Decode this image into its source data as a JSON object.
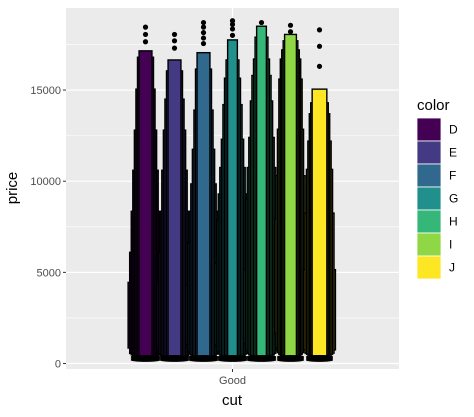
{
  "chart_data": {
    "type": "letter-value",
    "xlabel": "cut",
    "ylabel": "price",
    "categories": [
      "Good"
    ],
    "ylim": [
      -300,
      19500
    ],
    "yticks": [
      0,
      5000,
      10000,
      15000
    ],
    "ytick_labels": [
      "0",
      "5000",
      "10000",
      "15000"
    ],
    "grid": true,
    "legend": {
      "title": "color",
      "position": "right",
      "entries": [
        {
          "label": "D",
          "color": "#440154"
        },
        {
          "label": "E",
          "color": "#443A83"
        },
        {
          "label": "F",
          "color": "#31688E"
        },
        {
          "label": "G",
          "color": "#21908C"
        },
        {
          "label": "H",
          "color": "#35B779"
        },
        {
          "label": "I",
          "color": "#8FD744"
        },
        {
          "label": "J",
          "color": "#FDE725"
        }
      ]
    },
    "series": [
      {
        "name": "D",
        "color": "#440154",
        "half_width": 0.6,
        "boxes": [
          [
            850,
            4450
          ],
          [
            550,
            6100
          ],
          [
            470,
            8350
          ],
          [
            430,
            10600
          ],
          [
            400,
            12800
          ],
          [
            390,
            15050
          ],
          [
            370,
            16800
          ],
          [
            360,
            17150
          ]
        ],
        "outliers": [
          17650,
          18050,
          18450
        ]
      },
      {
        "name": "E",
        "color": "#443A83",
        "half_width": 0.6,
        "boxes": [
          [
            850,
            4450
          ],
          [
            530,
            6100
          ],
          [
            450,
            8350
          ],
          [
            410,
            10600
          ],
          [
            390,
            12800
          ],
          [
            370,
            14500
          ],
          [
            360,
            16050
          ],
          [
            350,
            16650
          ]
        ],
        "outliers": [
          17300,
          17700,
          18050
        ]
      },
      {
        "name": "F",
        "color": "#31688E",
        "half_width": 0.6,
        "boxes": [
          [
            1050,
            4300
          ],
          [
            650,
            6600
          ],
          [
            520,
            8350
          ],
          [
            460,
            9850
          ],
          [
            420,
            11750
          ],
          [
            400,
            13900
          ],
          [
            380,
            16150
          ],
          [
            370,
            17050
          ]
        ],
        "outliers": [
          17550,
          17850,
          18150,
          18450,
          18700
        ]
      },
      {
        "name": "G",
        "color": "#21908C",
        "half_width": 0.6,
        "boxes": [
          [
            1000,
            5500
          ],
          [
            650,
            7850
          ],
          [
            520,
            9300
          ],
          [
            460,
            10750
          ],
          [
            420,
            12300
          ],
          [
            400,
            14200
          ],
          [
            380,
            15650
          ],
          [
            370,
            16650
          ],
          [
            360,
            17750
          ]
        ],
        "outliers": [
          18000,
          18350,
          18600,
          18800
        ]
      },
      {
        "name": "H",
        "color": "#35B779",
        "half_width": 0.6,
        "boxes": [
          [
            1100,
            5200
          ],
          [
            700,
            9050
          ],
          [
            560,
            10750
          ],
          [
            480,
            12400
          ],
          [
            440,
            14400
          ],
          [
            420,
            15800
          ],
          [
            400,
            16700
          ],
          [
            390,
            17900
          ],
          [
            380,
            18500
          ]
        ],
        "outliers": [
          18700
        ]
      },
      {
        "name": "I",
        "color": "#8FD744",
        "half_width": 0.55,
        "boxes": [
          [
            1650,
            7950
          ],
          [
            860,
            10300
          ],
          [
            600,
            12850
          ],
          [
            500,
            15600
          ],
          [
            440,
            16700
          ],
          [
            420,
            17200
          ],
          [
            400,
            17700
          ],
          [
            390,
            18050
          ]
        ],
        "outliers": [
          18200,
          18550
        ]
      },
      {
        "name": "J",
        "color": "#FDE725",
        "half_width": 0.55,
        "boxes": [
          [
            750,
            5150
          ],
          [
            570,
            8250
          ],
          [
            500,
            10650
          ],
          [
            460,
            12200
          ],
          [
            440,
            13700
          ],
          [
            430,
            14300
          ],
          [
            420,
            15050
          ]
        ],
        "outliers": [
          16300,
          17400,
          18300
        ]
      }
    ]
  }
}
